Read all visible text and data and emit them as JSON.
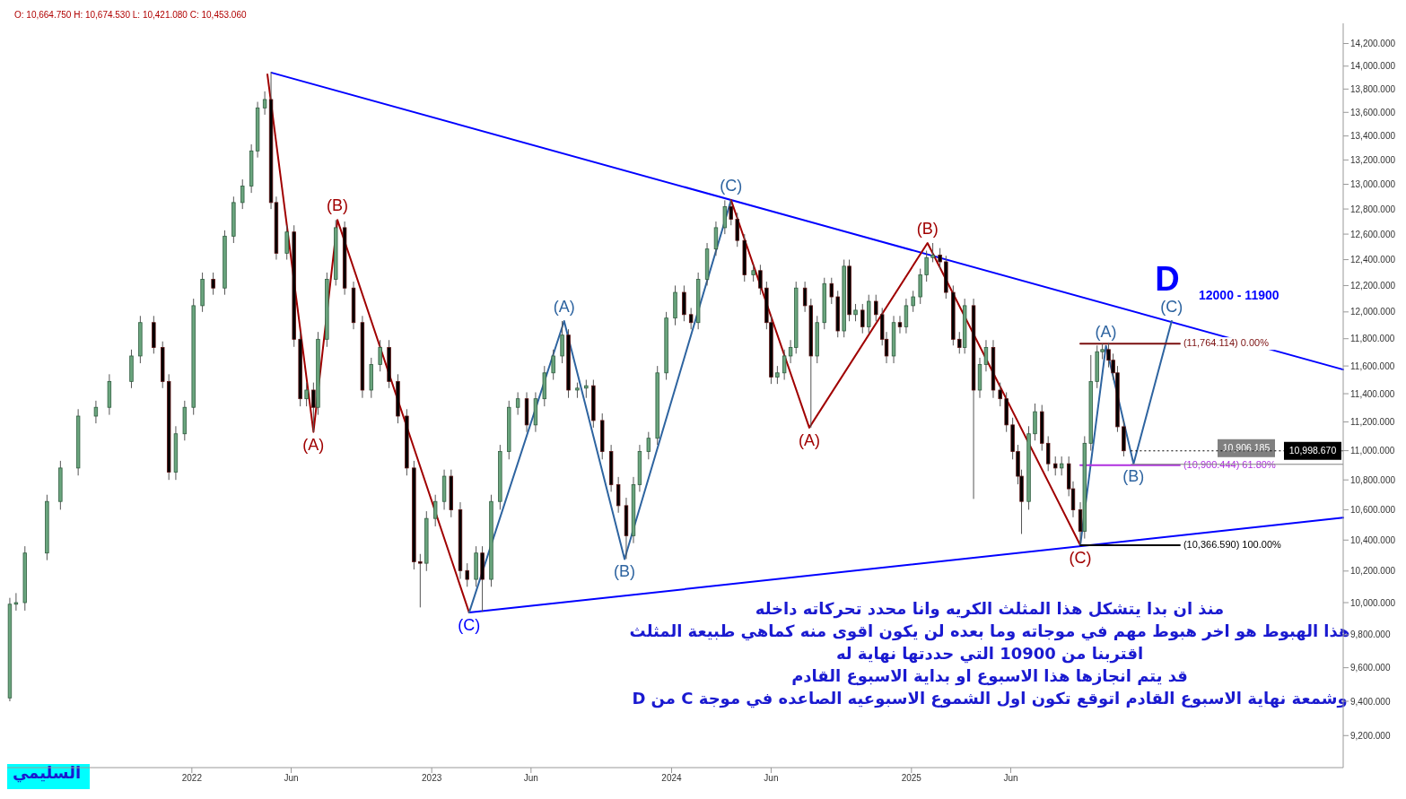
{
  "chart_data": {
    "type": "candlestick",
    "title": "O: 10,664.750   H: 10,674.530   L: 10,421.080   C: 10,453.060",
    "x": [
      2021.241,
      2021.267,
      2021.304,
      2021.396,
      2021.452,
      2021.526,
      2021.6,
      2021.656,
      2021.748,
      2021.785,
      2021.841,
      2021.878,
      2021.904,
      2021.933,
      2021.97,
      2022.007,
      2022.044,
      2022.089,
      2022.137,
      2022.174,
      2022.211,
      2022.248,
      2022.274,
      2022.304,
      2022.33,
      2022.352,
      2022.396,
      2022.426,
      2022.452,
      2022.478,
      2022.507,
      2022.526,
      2022.563,
      2022.6,
      2022.637,
      2022.674,
      2022.711,
      2022.748,
      2022.785,
      2022.822,
      2022.859,
      2022.896,
      2022.926,
      2022.952,
      2022.978,
      2023.015,
      2023.052,
      2023.081,
      2023.119,
      2023.148,
      2023.185,
      2023.211,
      2023.248,
      2023.285,
      2023.322,
      2023.359,
      2023.396,
      2023.433,
      2023.47,
      2023.507,
      2023.544,
      2023.57,
      2023.607,
      2023.644,
      2023.674,
      2023.711,
      2023.748,
      2023.778,
      2023.811,
      2023.841,
      2023.867,
      2023.904,
      2023.941,
      2023.978,
      2024.015,
      2024.052,
      2024.081,
      2024.111,
      2024.148,
      2024.185,
      2024.222,
      2024.248,
      2024.274,
      2024.304,
      2024.341,
      2024.37,
      2024.396,
      2024.415,
      2024.441,
      2024.47,
      2024.496,
      2024.519,
      2024.556,
      2024.581,
      2024.607,
      2024.637,
      2024.667,
      2024.693,
      2024.719,
      2024.741,
      2024.767,
      2024.796,
      2024.822,
      2024.852,
      2024.878,
      2024.896,
      2024.926,
      2024.952,
      2024.978,
      2025.007,
      2025.037,
      2025.063,
      2025.089,
      2025.119,
      2025.144,
      2025.174,
      2025.2,
      2025.222,
      2025.259,
      2025.285,
      2025.311,
      2025.341,
      2025.37,
      2025.396,
      2025.422,
      2025.444,
      2025.459,
      2025.489,
      2025.515,
      2025.544,
      2025.57,
      2025.6,
      2025.626,
      2025.656,
      2025.674,
      2025.704,
      2025.722,
      2025.748,
      2025.774,
      2025.796,
      2025.822,
      2025.841,
      2025.859,
      2025.885
    ],
    "ohlc": [
      [
        9420,
        10030,
        9400,
        9990
      ],
      [
        9990,
        10060,
        9950,
        10000
      ],
      [
        10000,
        10360,
        9950,
        10316
      ],
      [
        10316,
        10700,
        10270,
        10655
      ],
      [
        10655,
        10930,
        10600,
        10881
      ],
      [
        10881,
        11290,
        10830,
        11241
      ],
      [
        11241,
        11350,
        11190,
        11303
      ],
      [
        11303,
        11540,
        11250,
        11488
      ],
      [
        11488,
        11720,
        11440,
        11673
      ],
      [
        11673,
        11970,
        11620,
        11920
      ],
      [
        11920,
        11970,
        11690,
        11735
      ],
      [
        11735,
        11780,
        11440,
        11488
      ],
      [
        11488,
        11540,
        10800,
        10853
      ],
      [
        10853,
        11170,
        10800,
        11117
      ],
      [
        11117,
        11350,
        11070,
        11303
      ],
      [
        11303,
        12100,
        11250,
        12047
      ],
      [
        12047,
        12300,
        12000,
        12248
      ],
      [
        12248,
        12300,
        12130,
        12181
      ],
      [
        12181,
        12630,
        12130,
        12584
      ],
      [
        12584,
        12900,
        12530,
        12852
      ],
      [
        12852,
        13040,
        12800,
        12986
      ],
      [
        12986,
        13330,
        12930,
        13275
      ],
      [
        13275,
        13690,
        13220,
        13638
      ],
      [
        13638,
        13780,
        13580,
        13710
      ],
      [
        13710,
        13950,
        12800,
        12852
      ],
      [
        12852,
        12900,
        12400,
        12450
      ],
      [
        12450,
        12670,
        12400,
        12617
      ],
      [
        12617,
        12670,
        11740,
        11796
      ],
      [
        11796,
        11850,
        11310,
        11364
      ],
      [
        11364,
        11480,
        11310,
        11426
      ],
      [
        11426,
        11480,
        11130,
        11303
      ],
      [
        11303,
        11850,
        11250,
        11796
      ],
      [
        11796,
        12300,
        11740,
        12248
      ],
      [
        12248,
        12712,
        12200,
        12651
      ],
      [
        12651,
        12700,
        12130,
        12181
      ],
      [
        12181,
        12230,
        11870,
        11920
      ],
      [
        11920,
        11970,
        11370,
        11426
      ],
      [
        11426,
        11660,
        11370,
        11611
      ],
      [
        11611,
        11790,
        11560,
        11735
      ],
      [
        11735,
        11790,
        11440,
        11488
      ],
      [
        11488,
        11540,
        11190,
        11241
      ],
      [
        11241,
        11290,
        10830,
        10881
      ],
      [
        10881,
        10930,
        10210,
        10260
      ],
      [
        10260,
        10310,
        9970,
        10250
      ],
      [
        10250,
        10590,
        10200,
        10542
      ],
      [
        10542,
        10700,
        10490,
        10655
      ],
      [
        10655,
        10870,
        10600,
        10825
      ],
      [
        10825,
        10870,
        10550,
        10599
      ],
      [
        10599,
        10650,
        10150,
        10203
      ],
      [
        10203,
        10250,
        10100,
        10147
      ],
      [
        10147,
        10360,
        10100,
        10316
      ],
      [
        10316,
        10360,
        9943,
        10147
      ],
      [
        10147,
        10700,
        10100,
        10655
      ],
      [
        10655,
        11040,
        10600,
        10994
      ],
      [
        10994,
        11350,
        10940,
        11303
      ],
      [
        11303,
        11410,
        11250,
        11364
      ],
      [
        11364,
        11410,
        11130,
        11179
      ],
      [
        11179,
        11410,
        11130,
        11364
      ],
      [
        11364,
        11600,
        11310,
        11550
      ],
      [
        11550,
        11720,
        11500,
        11673
      ],
      [
        11673,
        11932,
        11620,
        11827
      ],
      [
        11827,
        11870,
        11370,
        11426
      ],
      [
        11426,
        11480,
        11370,
        11440
      ],
      [
        11440,
        11500,
        11370,
        11457
      ],
      [
        11457,
        11500,
        11160,
        11210
      ],
      [
        11210,
        11260,
        10940,
        10994
      ],
      [
        10994,
        11040,
        10720,
        10768
      ],
      [
        10768,
        10820,
        10580,
        10627
      ],
      [
        10627,
        10680,
        10277,
        10429
      ],
      [
        10429,
        10820,
        10380,
        10768
      ],
      [
        10768,
        11040,
        10720,
        10994
      ],
      [
        10994,
        11130,
        10940,
        11086
      ],
      [
        11086,
        11600,
        11040,
        11550
      ],
      [
        11550,
        12000,
        11500,
        11954
      ],
      [
        11954,
        12200,
        11900,
        12148
      ],
      [
        12148,
        12200,
        11930,
        11980
      ],
      [
        11980,
        12030,
        11870,
        11920
      ],
      [
        11920,
        12300,
        11870,
        12248
      ],
      [
        12248,
        12530,
        12200,
        12483
      ],
      [
        12483,
        12700,
        12430,
        12651
      ],
      [
        12651,
        12870,
        12600,
        12819
      ],
      [
        12819,
        12872,
        12670,
        12718
      ],
      [
        12718,
        12770,
        12500,
        12550
      ],
      [
        12550,
        12600,
        12230,
        12282
      ],
      [
        12282,
        12360,
        12230,
        12315
      ],
      [
        12315,
        12360,
        12130,
        12181
      ],
      [
        12181,
        12230,
        11870,
        11920
      ],
      [
        11920,
        11970,
        11470,
        11519
      ],
      [
        11519,
        11600,
        11470,
        11550
      ],
      [
        11550,
        11720,
        11500,
        11673
      ],
      [
        11673,
        11790,
        11620,
        11735
      ],
      [
        11735,
        12230,
        11690,
        12181
      ],
      [
        12181,
        12230,
        12000,
        12047
      ],
      [
        12047,
        12100,
        11160,
        11673
      ],
      [
        11673,
        11970,
        11620,
        11920
      ],
      [
        11920,
        12260,
        11870,
        12215
      ],
      [
        12215,
        12260,
        12060,
        12114
      ],
      [
        12114,
        12160,
        11810,
        11858
      ],
      [
        11858,
        12400,
        11810,
        12349
      ],
      [
        12349,
        12400,
        11930,
        11980
      ],
      [
        11980,
        12060,
        11930,
        12013
      ],
      [
        12013,
        12060,
        11840,
        11889
      ],
      [
        11889,
        12130,
        11840,
        12080
      ],
      [
        12080,
        12130,
        11930,
        11980
      ],
      [
        11980,
        12030,
        11750,
        11796
      ],
      [
        11796,
        11850,
        11620,
        11673
      ],
      [
        11673,
        11970,
        11620,
        11920
      ],
      [
        11920,
        11970,
        11840,
        11889
      ],
      [
        11889,
        12100,
        11840,
        12047
      ],
      [
        12047,
        12160,
        12000,
        12114
      ],
      [
        12114,
        12330,
        12060,
        12282
      ],
      [
        12282,
        12470,
        12230,
        12416
      ],
      [
        12416,
        12530,
        12380,
        12436
      ],
      [
        12436,
        12490,
        12330,
        12383
      ],
      [
        12383,
        12430,
        12100,
        12148
      ],
      [
        12148,
        12200,
        11750,
        11796
      ],
      [
        11796,
        11850,
        11690,
        11735
      ],
      [
        11735,
        12100,
        11690,
        12047
      ],
      [
        12047,
        12100,
        10672,
        11426
      ],
      [
        11426,
        11660,
        11370,
        11611
      ],
      [
        11611,
        11790,
        11560,
        11735
      ],
      [
        11735,
        11790,
        11370,
        11426
      ],
      [
        11426,
        11480,
        11310,
        11364
      ],
      [
        11364,
        11410,
        11130,
        11179
      ],
      [
        11179,
        11230,
        10940,
        10994
      ],
      [
        10994,
        11040,
        10770,
        10825
      ],
      [
        10825,
        10870,
        10440,
        10655
      ],
      [
        10655,
        11170,
        10600,
        11117
      ],
      [
        11117,
        11330,
        11070,
        11272
      ],
      [
        11272,
        11320,
        11000,
        11051
      ],
      [
        11051,
        11100,
        10860,
        10910
      ],
      [
        10910,
        10960,
        10830,
        10881
      ],
      [
        10881,
        10960,
        10830,
        10910
      ],
      [
        10910,
        10960,
        10690,
        10740
      ],
      [
        10740,
        10790,
        10550,
        10599
      ],
      [
        10599,
        10650,
        10367,
        10458
      ],
      [
        10458,
        11100,
        10410,
        11051
      ],
      [
        11051,
        11680,
        11000,
        11488
      ],
      [
        11488,
        11750,
        11440,
        11704
      ],
      [
        11704,
        11764,
        11650,
        11720
      ],
      [
        11720,
        11770,
        11590,
        11642
      ],
      [
        11642,
        11690,
        11500,
        11550
      ],
      [
        11550,
        11600,
        11130,
        11166
      ],
      [
        11166,
        11210,
        10960,
        10999
      ]
    ],
    "series": [
      {
        "type": "line",
        "color": "#0000ff",
        "x": [
          2022.333,
          2026.8
        ],
        "values": [
          13942,
          11574
        ]
      },
      {
        "type": "line",
        "color": "#0000ff",
        "x": [
          2023.156,
          2026.8
        ],
        "values": [
          9938,
          10547
        ]
      },
      {
        "type": "line",
        "color": "#a00000",
        "x": [
          2022.315,
          2022.507,
          2022.607,
          2023.156
        ],
        "values": [
          13927,
          11130,
          12712,
          9938
        ]
      },
      {
        "type": "line",
        "color": "#2e64a0",
        "x": [
          2023.156,
          2023.552,
          2023.804,
          2024.248
        ],
        "values": [
          9938,
          11932,
          10277,
          12872
        ]
      },
      {
        "type": "line",
        "color": "#a00000",
        "x": [
          2024.248,
          2024.574,
          2025.067,
          2025.704
        ],
        "values": [
          12872,
          11160,
          12530,
          10367
        ]
      },
      {
        "type": "line",
        "color": "#2e64a0",
        "x": [
          2025.704,
          2025.811,
          2025.926,
          2026.085
        ],
        "values": [
          10367,
          11747,
          10910,
          11932
        ]
      },
      {
        "type": "line",
        "name": "(11,764.114) 0.00%",
        "color": "#7b1010",
        "x": [
          2025.704,
          2026.119
        ],
        "values": [
          11764.114,
          11764.114
        ]
      },
      {
        "type": "line",
        "name": "(10,900.444) 61.80%",
        "color": "#b030e0",
        "x": [
          2025.704,
          2026.119
        ],
        "values": [
          10900.444,
          10900.444
        ]
      },
      {
        "type": "line",
        "name": "(10,366.590) 100.00%",
        "color": "#000000",
        "x": [
          2025.704,
          2026.119
        ],
        "values": [
          10366.59,
          10366.59
        ]
      }
    ],
    "annotations": [
      {
        "text": "(A)",
        "x": 2022.507,
        "y": 11130
      },
      {
        "text": "(B)",
        "x": 2022.607,
        "y": 12712
      },
      {
        "text": "(C)",
        "x": 2023.156,
        "y": 9938
      },
      {
        "text": "(A)",
        "x": 2023.552,
        "y": 11932
      },
      {
        "text": "(B)",
        "x": 2023.804,
        "y": 10277
      },
      {
        "text": "(C)",
        "x": 2024.248,
        "y": 12872
      },
      {
        "text": "(A)",
        "x": 2024.574,
        "y": 11160
      },
      {
        "text": "(B)",
        "x": 2025.067,
        "y": 12530
      },
      {
        "text": "(C)",
        "x": 2025.704,
        "y": 10367
      },
      {
        "text": "(A)",
        "x": 2025.811,
        "y": 11747
      },
      {
        "text": "(B)",
        "x": 2025.926,
        "y": 10910
      },
      {
        "text": "(C)",
        "x": 2026.085,
        "y": 11932
      },
      "D",
      "12000 - 11900",
      "منذ ان بدا يتشكل هذا المثلث الكريه وانا محدد تحركاته داخله",
      "هذا الهبوط هو اخر هبوط مهم في موجاته وما بعده لن يكون اقوى منه كماهي طبيعة المثلث",
      "اقتربنا من 10900 التي حددتها نهاية له",
      "قد يتم انجازها هذا الاسبوع او بداية الاسبوع القادم",
      "وشمعة نهاية الاسبوع القادم اتوقع تكون اول الشموع الاسبوعيه الصاعده في موجة C من D",
      "السليمي"
    ],
    "ref_lines": [
      {
        "axis": "y",
        "value": 10906.185,
        "label": "10,906.185",
        "color": "#808080",
        "line_style": "solid"
      },
      {
        "axis": "y",
        "value": 10998.67,
        "label": "10,998.670",
        "color": "#000000",
        "line_style": "dotted"
      }
    ],
    "log": true,
    "xlim": [
      2021.23,
      2026.8
    ],
    "xticks": [
      2022,
      {
        "value": 2022.414,
        "label": "Jun"
      },
      2023,
      {
        "value": 2023.414,
        "label": "Jun"
      },
      2024,
      {
        "value": 2024.415,
        "label": "Jun"
      },
      2025,
      {
        "value": 2025.414,
        "label": "Jun"
      }
    ],
    "ylim": [
      9017,
      14381
    ],
    "yticks": [
      {
        "value": 9200,
        "label": "9,200.000"
      },
      {
        "value": 9400,
        "label": "9,400.000"
      },
      {
        "value": 9600,
        "label": "9,600.000"
      },
      {
        "value": 9800,
        "label": "9,800.000"
      },
      {
        "value": 10000,
        "label": "10,000.000"
      },
      {
        "value": 10200,
        "label": "10,200.000"
      },
      {
        "value": 10400,
        "label": "10,400.000"
      },
      {
        "value": 10600,
        "label": "10,600.000"
      },
      {
        "value": 10800,
        "label": "10,800.000"
      },
      {
        "value": 11000,
        "label": "11,000.000"
      },
      {
        "value": 11200,
        "label": "11,200.000"
      },
      {
        "value": 11400,
        "label": "11,400.000"
      },
      {
        "value": 11600,
        "label": "11,600.000"
      },
      {
        "value": 11800,
        "label": "11,800.000"
      },
      {
        "value": 12000,
        "label": "12,000.000"
      },
      {
        "value": 12200,
        "label": "12,200.000"
      },
      {
        "value": 12400,
        "label": "12,400.000"
      },
      {
        "value": 12600,
        "label": "12,600.000"
      },
      {
        "value": 12800,
        "label": "12,800.000"
      },
      {
        "value": 13000,
        "label": "13,000.000"
      },
      {
        "value": 13200,
        "label": "13,200.000"
      },
      {
        "value": 13400,
        "label": "13,400.000"
      },
      {
        "value": 13600,
        "label": "13,600.000"
      },
      {
        "value": 13800,
        "label": "13,800.000"
      },
      {
        "value": 14000,
        "label": "14,000.000"
      },
      {
        "value": 14200,
        "label": "14,200.000"
      }
    ],
    "line_style": "solid"
  }
}
